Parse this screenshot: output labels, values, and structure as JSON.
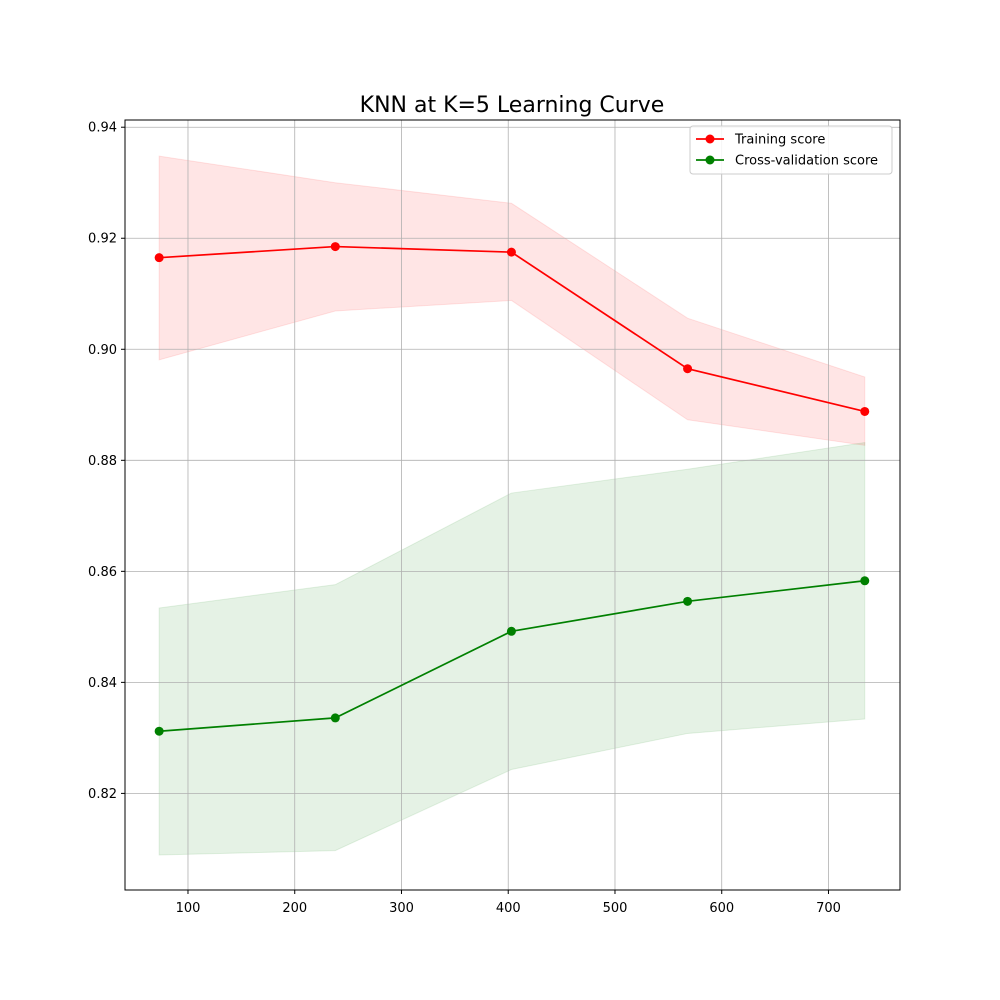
{
  "chart_data": {
    "type": "line",
    "title": "KNN at K=5 Learning Curve",
    "xlabel": "",
    "ylabel": "",
    "xlim": [
      41,
      767
    ],
    "ylim": [
      0.8026,
      0.9413
    ],
    "xticks": [
      100,
      200,
      300,
      400,
      500,
      600,
      700
    ],
    "yticks": [
      0.82,
      0.84,
      0.86,
      0.88,
      0.9,
      0.92,
      0.94
    ],
    "grid": true,
    "legend_position": "upper right",
    "x": [
      73,
      238,
      403,
      568,
      734
    ],
    "series": [
      {
        "name": "Training score",
        "color": "#ff0000",
        "band_color": "#ff0000",
        "marker": "circle",
        "values": [
          0.9165,
          0.9185,
          0.9175,
          0.8965,
          0.8888
        ],
        "upper": [
          0.9348,
          0.93,
          0.9263,
          0.9056,
          0.895
        ],
        "lower": [
          0.8981,
          0.9069,
          0.9088,
          0.8873,
          0.8827
        ]
      },
      {
        "name": "Cross-validation score",
        "color": "#008000",
        "band_color": "#008000",
        "marker": "circle",
        "values": [
          0.8312,
          0.8336,
          0.8492,
          0.8546,
          0.8583
        ],
        "upper": [
          0.8534,
          0.8576,
          0.8741,
          0.8784,
          0.8832
        ],
        "lower": [
          0.8089,
          0.8097,
          0.8243,
          0.8308,
          0.8334
        ]
      }
    ]
  }
}
